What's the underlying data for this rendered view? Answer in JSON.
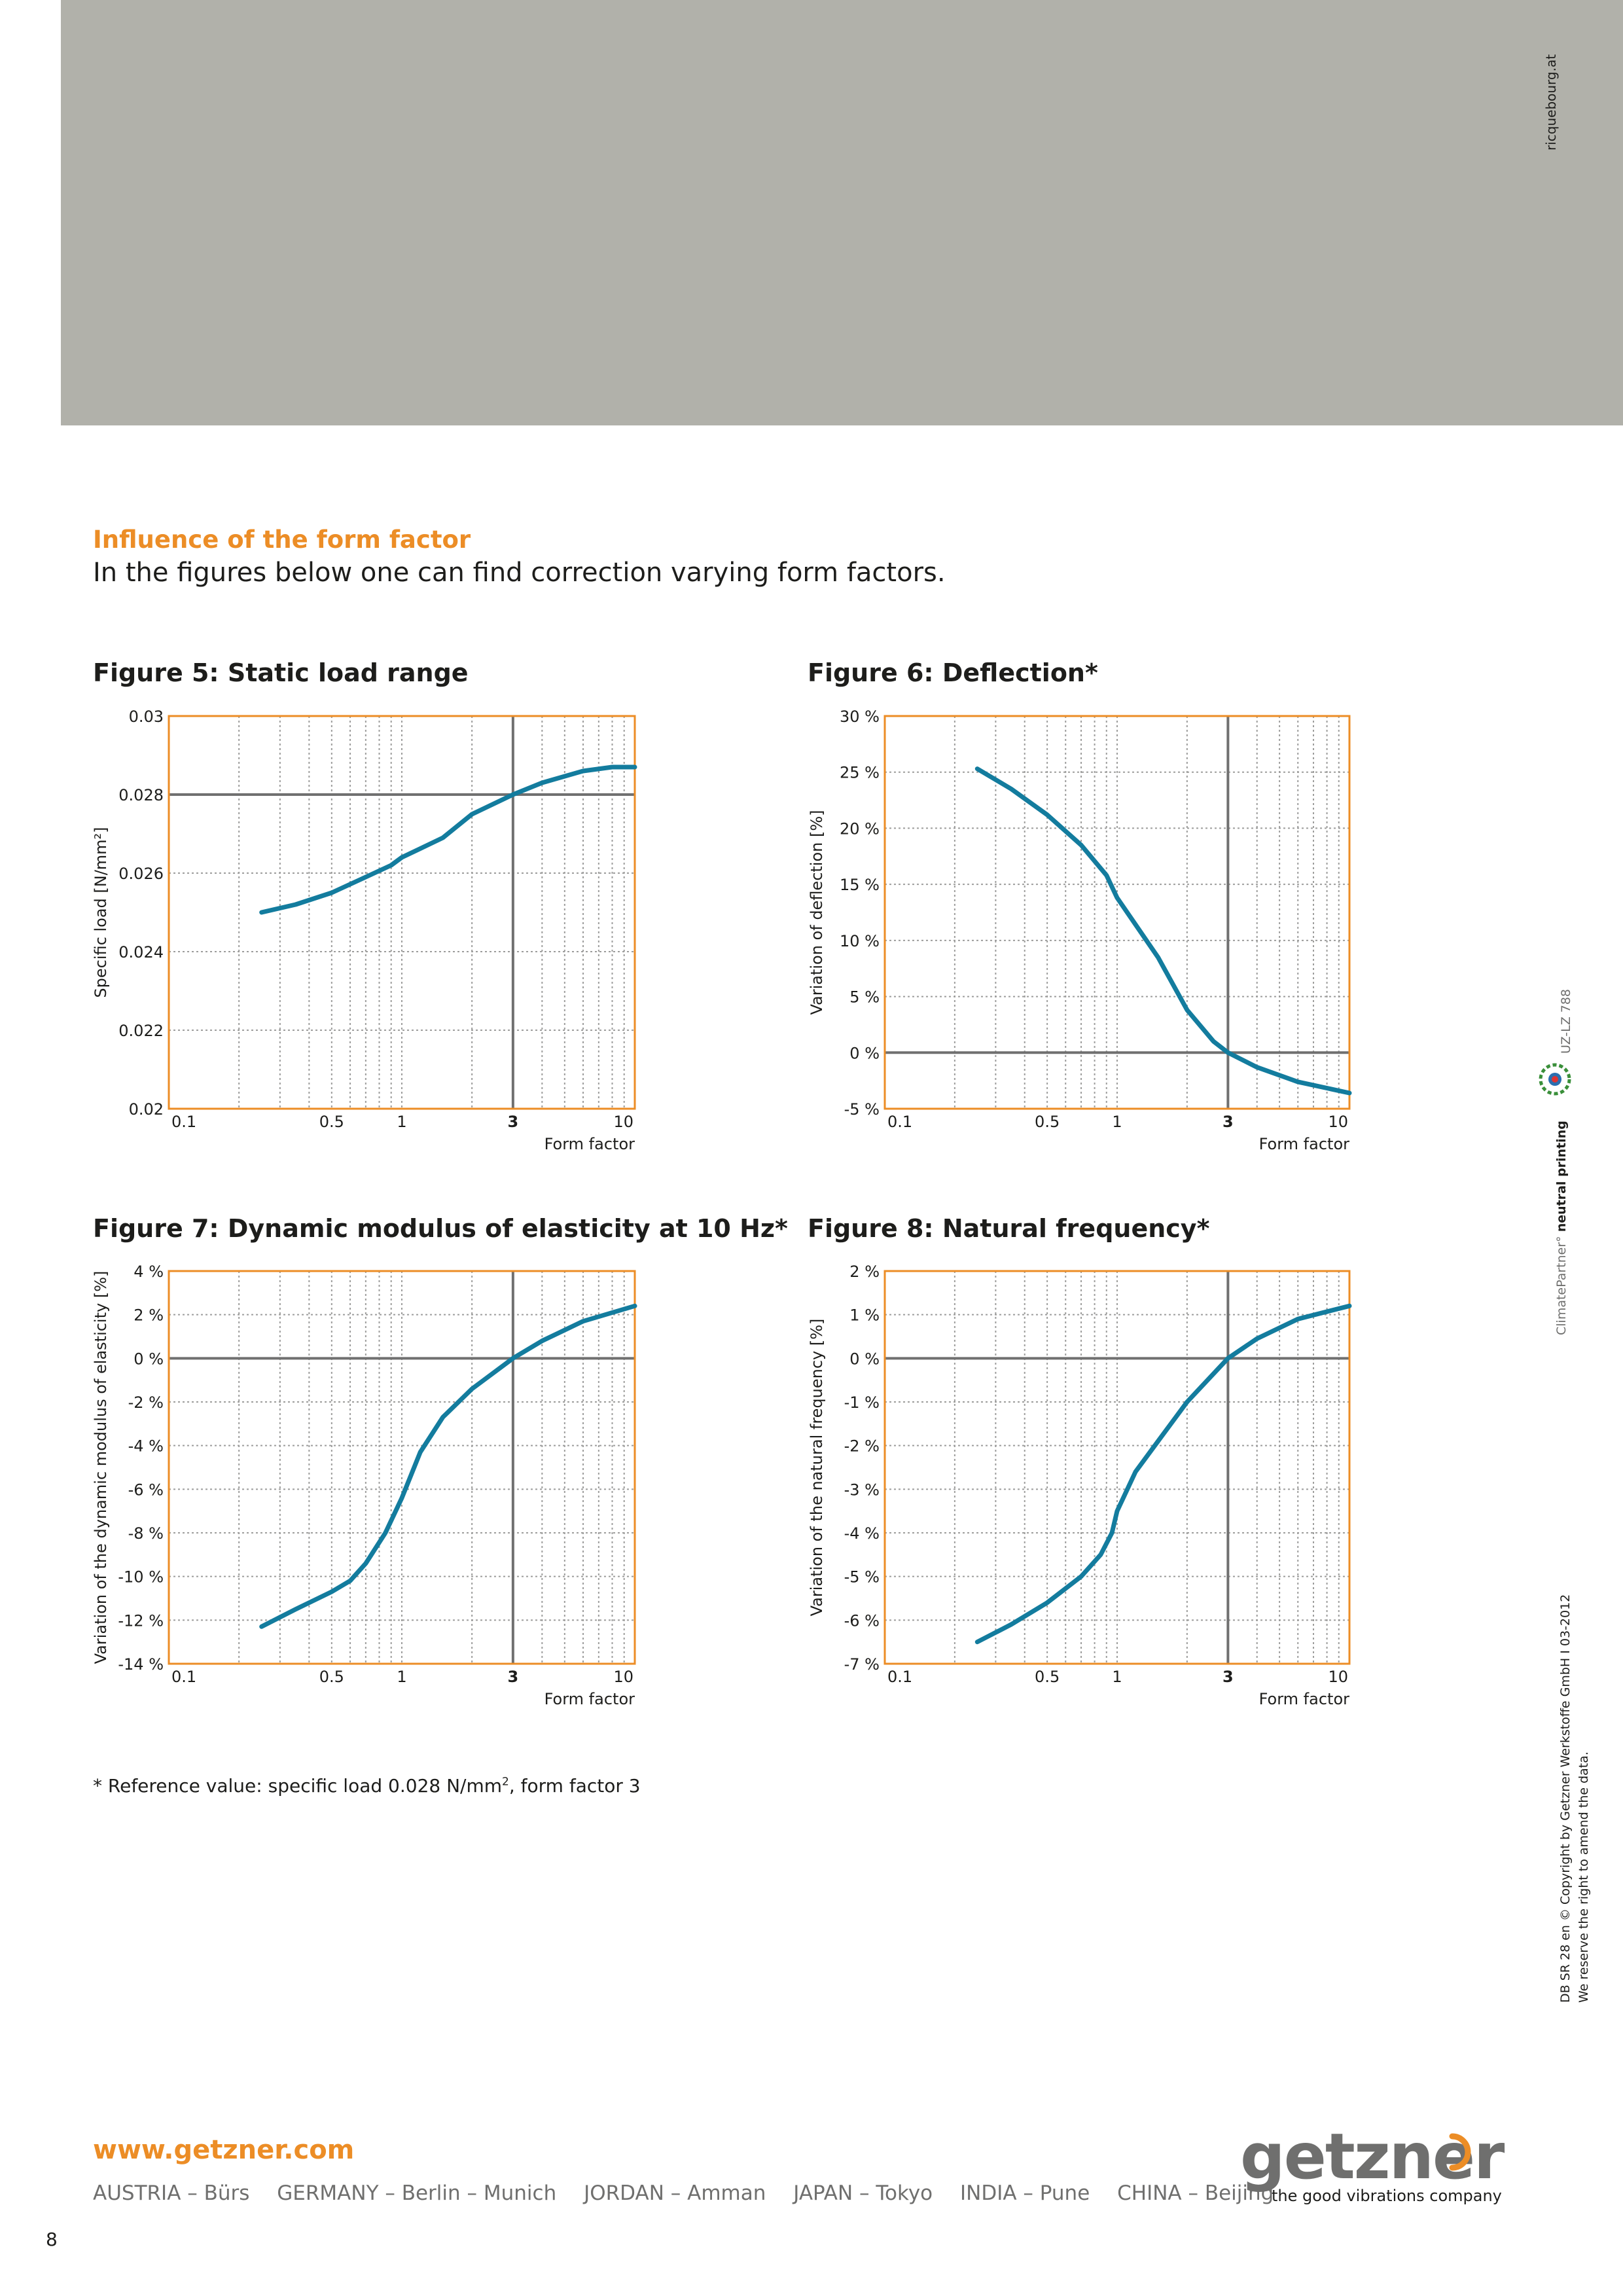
{
  "header": {
    "credit": "ricquebourg.at"
  },
  "section": {
    "title": "Influence of the form factor",
    "intro": "In the figures below one can find correction varying form factors."
  },
  "x_axis": {
    "ticks": [
      {
        "v": 0.1,
        "label": "0.1"
      },
      {
        "v": 0.5,
        "label": "0.5"
      },
      {
        "v": 1,
        "label": "1"
      },
      {
        "v": 3,
        "label": "3"
      },
      {
        "v": 10,
        "label": "10"
      }
    ],
    "label": "Form factor",
    "reference": 3
  },
  "chart_data": [
    {
      "type": "line",
      "title": "Figure 5: Static load range",
      "ylabel": "Specific load [N/mm²]",
      "xlabel": "Form factor",
      "xscale": "log",
      "xlim": [
        0.1,
        10
      ],
      "ylim": [
        0.02,
        0.03
      ],
      "yticks": [
        {
          "v": 0.03,
          "label": "0.03"
        },
        {
          "v": 0.028,
          "label": "0.028"
        },
        {
          "v": 0.026,
          "label": "0.026"
        },
        {
          "v": 0.024,
          "label": "0.024"
        },
        {
          "v": 0.022,
          "label": "0.022"
        },
        {
          "v": 0.02,
          "label": "0.02"
        }
      ],
      "reference_y": 0.028,
      "grid": true,
      "series": [
        {
          "x": [
            0.25,
            0.35,
            0.5,
            0.7,
            0.9,
            1.0,
            1.5,
            2.0,
            3.0,
            4.0,
            6.0,
            8.0,
            10.0
          ],
          "y": [
            0.025,
            0.0252,
            0.0255,
            0.0259,
            0.0262,
            0.0264,
            0.0269,
            0.0275,
            0.028,
            0.0283,
            0.0286,
            0.0287,
            0.0287
          ]
        }
      ]
    },
    {
      "type": "line",
      "title": "Figure 6: Deflection*",
      "ylabel": "Variation of deflection [%]",
      "xlabel": "Form factor",
      "xscale": "log",
      "xlim": [
        0.1,
        10
      ],
      "ylim": [
        -5,
        30
      ],
      "yticks": [
        {
          "v": 30,
          "label": "30 %"
        },
        {
          "v": 25,
          "label": "25 %"
        },
        {
          "v": 20,
          "label": "20 %"
        },
        {
          "v": 15,
          "label": "15 %"
        },
        {
          "v": 10,
          "label": "10 %"
        },
        {
          "v": 5,
          "label": "5 %"
        },
        {
          "v": 0,
          "label": "0 %"
        },
        {
          "v": -5,
          "label": "-5 %"
        }
      ],
      "reference_y": 0,
      "grid": true,
      "series": [
        {
          "x": [
            0.25,
            0.35,
            0.5,
            0.7,
            0.9,
            1.0,
            1.5,
            2.0,
            2.6,
            3.0,
            4.0,
            6.0,
            10.0
          ],
          "y": [
            25.3,
            23.5,
            21.2,
            18.5,
            15.8,
            13.8,
            8.5,
            3.8,
            1.0,
            0.0,
            -1.3,
            -2.6,
            -3.6
          ]
        }
      ]
    },
    {
      "type": "line",
      "title": "Figure 7: Dynamic modulus of elasticity at 10 Hz*",
      "ylabel": "Variation of the dynamic modulus of elasticity [%]",
      "xlabel": "Form factor",
      "xscale": "log",
      "xlim": [
        0.1,
        10
      ],
      "ylim": [
        -14,
        4
      ],
      "yticks": [
        {
          "v": 4,
          "label": "4 %"
        },
        {
          "v": 2,
          "label": "2 %"
        },
        {
          "v": 0,
          "label": "0 %"
        },
        {
          "v": -2,
          "label": "-2 %"
        },
        {
          "v": -4,
          "label": "-4 %"
        },
        {
          "v": -6,
          "label": "-6 %"
        },
        {
          "v": -8,
          "label": "-8 %"
        },
        {
          "v": -10,
          "label": "-10 %"
        },
        {
          "v": -12,
          "label": "-12 %"
        },
        {
          "v": -14,
          "label": "-14 %"
        }
      ],
      "reference_y": 0,
      "grid": true,
      "series": [
        {
          "x": [
            0.25,
            0.35,
            0.5,
            0.6,
            0.7,
            0.85,
            1.0,
            1.2,
            1.5,
            2.0,
            3.0,
            4.0,
            6.0,
            10.0
          ],
          "y": [
            -12.3,
            -11.5,
            -10.7,
            -10.2,
            -9.4,
            -8.0,
            -6.4,
            -4.3,
            -2.7,
            -1.4,
            0.0,
            0.8,
            1.7,
            2.4
          ]
        }
      ]
    },
    {
      "type": "line",
      "title": "Figure 8: Natural frequency*",
      "ylabel": "Variation of the natural frequency [%]",
      "xlabel": "Form factor",
      "xscale": "log",
      "xlim": [
        0.1,
        10
      ],
      "ylim": [
        -7,
        2
      ],
      "yticks": [
        {
          "v": 2,
          "label": "2 %"
        },
        {
          "v": 1,
          "label": "1 %"
        },
        {
          "v": 0,
          "label": "0 %"
        },
        {
          "v": -1,
          "label": "-1 %"
        },
        {
          "v": -2,
          "label": "-2 %"
        },
        {
          "v": -3,
          "label": "-3 %"
        },
        {
          "v": -4,
          "label": "-4 %"
        },
        {
          "v": -5,
          "label": "-5 %"
        },
        {
          "v": -6,
          "label": "-6 %"
        },
        {
          "v": -7,
          "label": "-7 %"
        }
      ],
      "reference_y": 0,
      "grid": true,
      "series": [
        {
          "x": [
            0.25,
            0.35,
            0.5,
            0.7,
            0.85,
            0.95,
            1.0,
            1.2,
            1.5,
            2.0,
            3.0,
            4.0,
            6.0,
            10.0
          ],
          "y": [
            -6.5,
            -6.1,
            -5.6,
            -5.0,
            -4.5,
            -4.0,
            -3.5,
            -2.6,
            -1.9,
            -1.0,
            0.0,
            0.45,
            0.9,
            1.2
          ]
        }
      ]
    }
  ],
  "footnote": {
    "prefix": "* Reference value: specific load 0.028 N/mm",
    "sup": "2",
    "suffix": ", form factor 3"
  },
  "footer": {
    "website": "www.getzner.com",
    "locations": [
      "AUSTRIA – Bürs",
      "GERMANY – Berlin – Munich",
      "JORDAN – Amman",
      "JAPAN – Tokyo",
      "INDIA – Pune",
      "CHINA – Beijing"
    ],
    "logo_word": "getzner",
    "logo_tagline": "the good vibrations company",
    "page_number": "8"
  },
  "side": {
    "copyright": "DB SR 28 en  © Copyright by Getzner Werkstoffe GmbH I 03-2012",
    "disclaimer": "We reserve the right to amend the data.",
    "climate_partner": "ClimatePartner°",
    "neutral_printing": "neutral printing",
    "uz_code": "UZ-LZ 788"
  },
  "colors": {
    "accent": "#ec8d26",
    "curve": "#137c9e",
    "header_band": "#b1b1aa",
    "frame": "#ec8d26",
    "grid": "#9d9d9c",
    "reference": "#707070"
  }
}
